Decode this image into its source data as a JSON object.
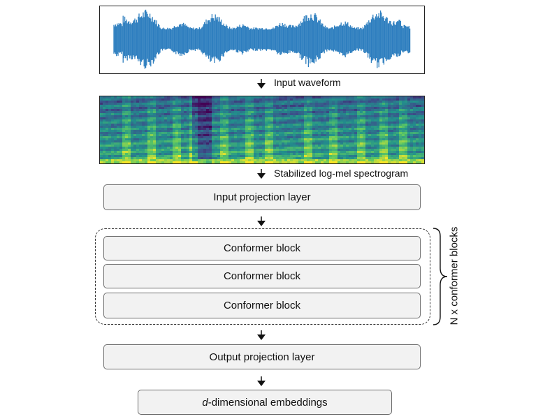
{
  "diagram": {
    "panels": {
      "waveform": {
        "kind": "audio waveform",
        "color": "#2f7fbf"
      },
      "spectrogram": {
        "kind": "log-mel spectrogram",
        "colormap": "viridis"
      }
    },
    "labels": {
      "input_waveform": "Input waveform",
      "spectrogram": "Stabilized log-mel spectrogram"
    },
    "boxes": {
      "input_projection": "Input projection layer",
      "conformer_blocks": [
        "Conformer block",
        "Conformer block",
        "Conformer block"
      ],
      "output_projection": "Output projection layer",
      "embeddings_prefix": "d",
      "embeddings_suffix": "-dimensional embeddings"
    },
    "group_label": "N x conformer blocks",
    "colors": {
      "box_fill": "#f2f2f2",
      "box_border": "#6e6e6e",
      "arrow": "#111111"
    }
  }
}
